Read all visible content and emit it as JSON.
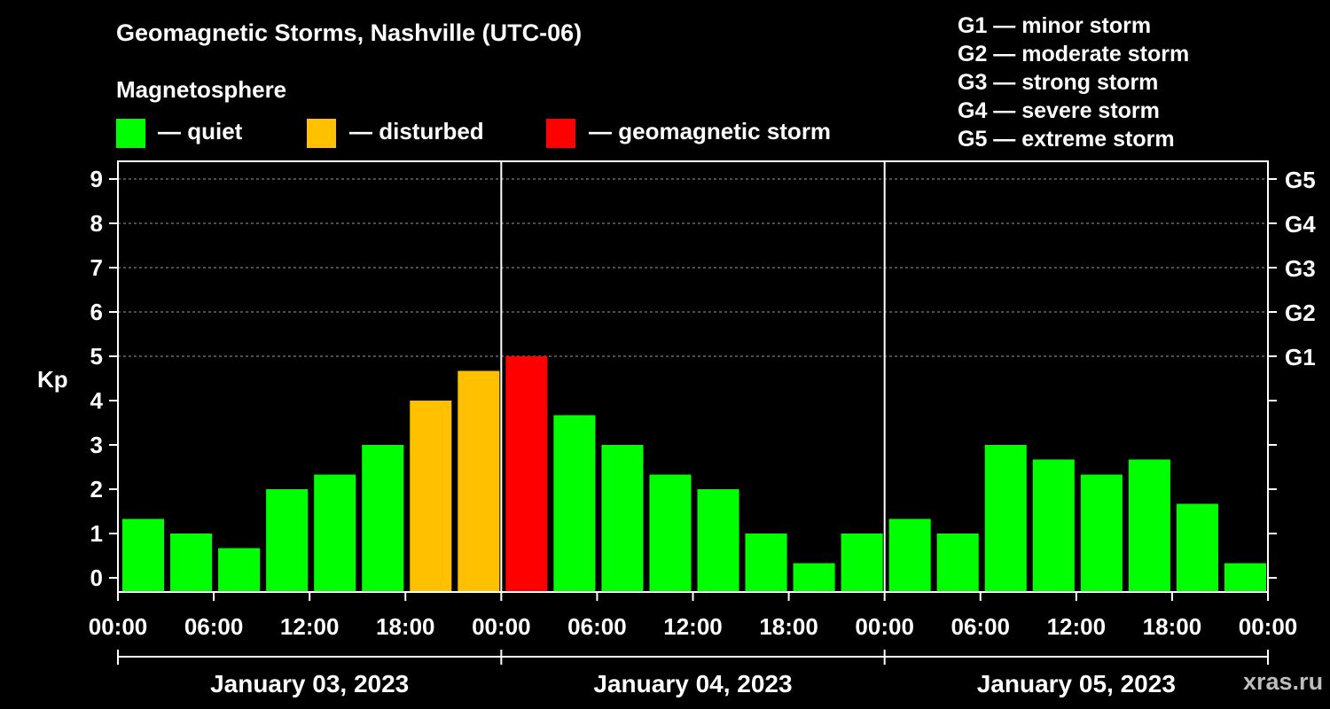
{
  "header": {
    "title": "Geomagnetic Storms, Nashville (UTC-06)",
    "subtitle": "Magnetosphere"
  },
  "legend": [
    {
      "label": "— quiet",
      "color": "#00ff00"
    },
    {
      "label": "— disturbed",
      "color": "#ffc000"
    },
    {
      "label": "— geomagnetic storm",
      "color": "#ff0000"
    }
  ],
  "storm_scale": [
    "G1 — minor storm",
    "G2 — moderate storm",
    "G3 — strong storm",
    "G4 — severe storm",
    "G5 — extreme storm"
  ],
  "watermark": "xras.ru",
  "chart_data": {
    "type": "bar",
    "title": "Geomagnetic Storms, Nashville (UTC-06)",
    "ylabel": "Kp",
    "ylim": [
      0,
      9
    ],
    "yticks": [
      "0",
      "1",
      "2",
      "3",
      "4",
      "5",
      "6",
      "7",
      "8",
      "9"
    ],
    "right_ticks": [
      {
        "kp": 5,
        "label": "G1"
      },
      {
        "kp": 6,
        "label": "G2"
      },
      {
        "kp": 7,
        "label": "G3"
      },
      {
        "kp": 8,
        "label": "G4"
      },
      {
        "kp": 9,
        "label": "G5"
      }
    ],
    "xticks": [
      "00:00",
      "06:00",
      "12:00",
      "18:00",
      "00:00",
      "06:00",
      "12:00",
      "18:00",
      "00:00",
      "06:00",
      "12:00",
      "18:00",
      "00:00"
    ],
    "days": [
      "January 03, 2023",
      "January 04, 2023",
      "January 05, 2023"
    ],
    "bar_interval_hours": 3,
    "values": [
      1.33,
      1.0,
      0.67,
      2.0,
      2.33,
      3.0,
      4.0,
      4.67,
      5.0,
      3.67,
      3.0,
      2.33,
      2.0,
      1.0,
      0.33,
      1.0,
      1.33,
      1.0,
      3.0,
      2.67,
      2.33,
      2.67,
      1.67,
      0.33
    ],
    "categories": [
      "quiet",
      "quiet",
      "quiet",
      "quiet",
      "quiet",
      "quiet",
      "disturbed",
      "disturbed",
      "storm",
      "quiet",
      "quiet",
      "quiet",
      "quiet",
      "quiet",
      "quiet",
      "quiet",
      "quiet",
      "quiet",
      "quiet",
      "quiet",
      "quiet",
      "quiet",
      "quiet",
      "quiet"
    ],
    "colors": {
      "quiet": "#00ff00",
      "disturbed": "#ffc000",
      "storm": "#ff0000"
    }
  }
}
